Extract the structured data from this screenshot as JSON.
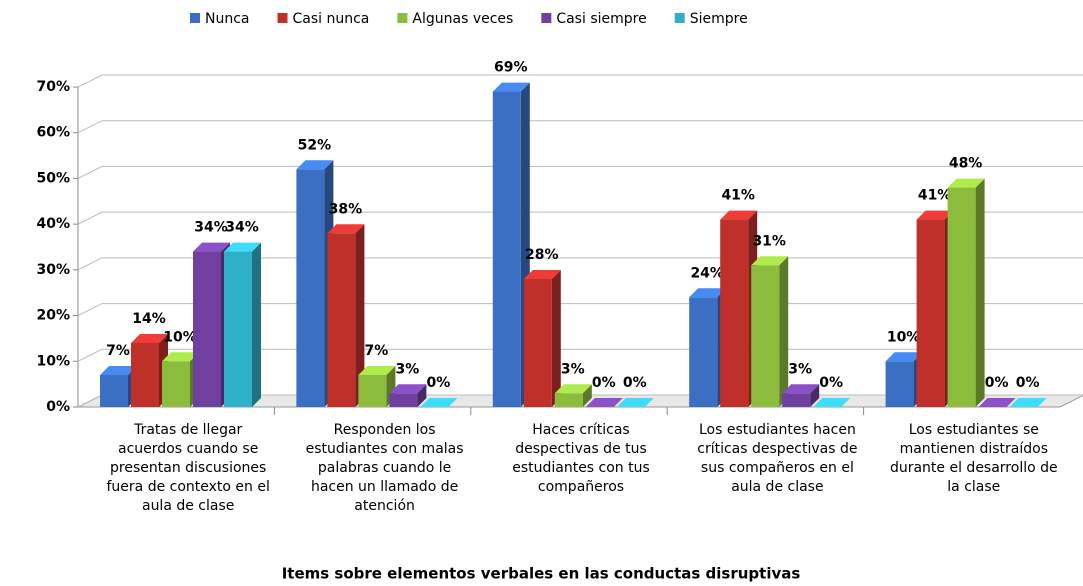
{
  "chart_data": {
    "type": "bar3d",
    "xlabel": "Items sobre elementos verbales en las conductas disruptivas",
    "categories": [
      "Tratas de llegar acuerdos cuando se presentan discusiones fuera de contexto en el aula de clase",
      "Responden los estudiantes con malas palabras cuando le hacen un llamado de atención",
      "Haces críticas despectivas de tus estudiantes con tus compañeros",
      "Los estudiantes hacen críticas despectivas de sus compañeros en el aula de clase",
      "Los estudiantes se mantienen distraídos durante el desarrollo de la clase"
    ],
    "series": [
      {
        "name": "Nunca",
        "color": "#3a6fc4",
        "values": [
          7,
          52,
          69,
          24,
          10
        ],
        "value_labels": [
          "7%",
          "52%",
          "69%",
          "24%",
          "10%"
        ]
      },
      {
        "name": "Casi nunca",
        "color": "#c0302b",
        "values": [
          14,
          38,
          28,
          41,
          41
        ],
        "value_labels": [
          "14%",
          "38%",
          "28%",
          "41%",
          "41%"
        ]
      },
      {
        "name": "Algunas veces",
        "color": "#8cbc3c",
        "values": [
          10,
          7,
          3,
          31,
          48
        ],
        "value_labels": [
          "10%",
          "7%",
          "3%",
          "31%",
          "48%"
        ]
      },
      {
        "name": "Casi siempre",
        "color": "#7040a0",
        "values": [
          34,
          3,
          0,
          3,
          0
        ],
        "value_labels": [
          "34%",
          "3%",
          "0%",
          "3%",
          "0%"
        ]
      },
      {
        "name": "Siempre",
        "color": "#30b0c8",
        "values": [
          34,
          0,
          0,
          0,
          0
        ],
        "value_labels": [
          "34%",
          "0%",
          "0%",
          "0%",
          "0%"
        ]
      }
    ],
    "ylim": [
      0,
      70
    ],
    "yticks": [
      {
        "value": 0,
        "label": "0%"
      },
      {
        "value": 10,
        "label": "10%"
      },
      {
        "value": 20,
        "label": "20%"
      },
      {
        "value": 30,
        "label": "30%"
      },
      {
        "value": 40,
        "label": "40%"
      },
      {
        "value": 50,
        "label": "50%"
      },
      {
        "value": 60,
        "label": "60%"
      },
      {
        "value": 70,
        "label": "70%"
      }
    ],
    "grid": true,
    "legend": "top"
  }
}
